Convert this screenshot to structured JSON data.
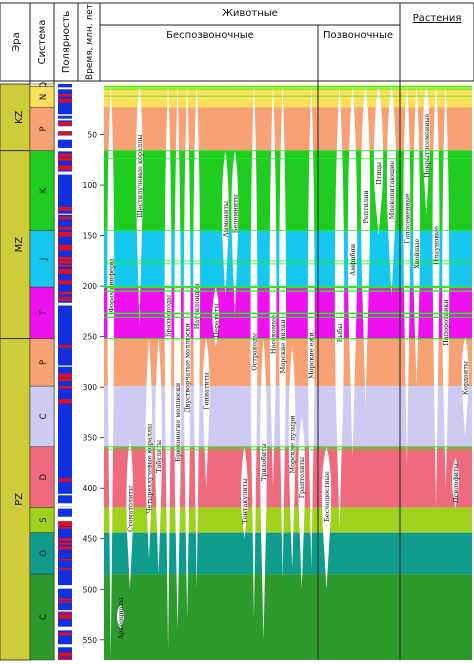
{
  "header": {
    "era": "Эра",
    "system": "Система",
    "polarity": "Полярность",
    "time": "Время, млн. лет",
    "animals": "Животные",
    "invertebrates": "Беспозвоночные",
    "vertebrates": "Позвоночные",
    "plants": "Растения"
  },
  "eras": [
    {
      "code": "KZ",
      "from": 0,
      "to": 66
    },
    {
      "code": "MZ",
      "from": 66,
      "to": 252
    },
    {
      "code": "PZ",
      "from": 252,
      "to": 570
    }
  ],
  "systems": [
    {
      "code": "Q",
      "from": 0,
      "to": 2.6,
      "color": "#f9f5a8"
    },
    {
      "code": "N",
      "from": 2.6,
      "to": 23,
      "color": "#fbe05a"
    },
    {
      "code": "P",
      "from": 23,
      "to": 66,
      "color": "#f7a174"
    },
    {
      "code": "K",
      "from": 66,
      "to": 145,
      "color": "#1fcc1f"
    },
    {
      "code": "J",
      "from": 145,
      "to": 201,
      "color": "#16c8f0"
    },
    {
      "code": "T",
      "from": 201,
      "to": 252,
      "color": "#ee10ee"
    },
    {
      "code": "P",
      "from": 252,
      "to": 299,
      "color": "#f7a174"
    },
    {
      "code": "C",
      "from": 299,
      "to": 359,
      "color": "#cfcaf2"
    },
    {
      "code": "D",
      "from": 359,
      "to": 419,
      "color": "#f06a7e"
    },
    {
      "code": "S",
      "from": 419,
      "to": 444,
      "color": "#9ed21c"
    },
    {
      "code": "O",
      "from": 444,
      "to": 485,
      "color": "#0f9c8c"
    },
    {
      "code": "C",
      "from": 485,
      "to": 570,
      "color": "#2c9a2c"
    }
  ],
  "time_ticks": [
    50,
    100,
    150,
    200,
    250,
    300,
    350,
    400,
    450,
    500,
    550
  ],
  "taxa": [
    {
      "label": "Фораминиферы",
      "group": "invertebrates",
      "from": 570,
      "to": 0
    },
    {
      "label": "Археоциаты",
      "group": "invertebrates",
      "from": 540,
      "to": 515
    },
    {
      "label": "Стоматолиты",
      "group": "invertebrates",
      "from": 500,
      "to": 350
    },
    {
      "label": "Шестилучевые кораллы",
      "group": "invertebrates",
      "from": 240,
      "to": 0
    },
    {
      "label": "Четырехлучевые кораллы",
      "group": "invertebrates",
      "from": 470,
      "to": 252
    },
    {
      "label": "Табуляты",
      "group": "invertebrates",
      "from": 485,
      "to": 252
    },
    {
      "label": "Брахиоподы",
      "group": "invertebrates",
      "from": 560,
      "to": 0
    },
    {
      "label": "Брюхоногие моллюски",
      "group": "invertebrates",
      "from": 540,
      "to": 0
    },
    {
      "label": "Двустворчатые моллюски",
      "group": "invertebrates",
      "from": 530,
      "to": 0
    },
    {
      "label": "Наутилоидеи",
      "group": "invertebrates",
      "from": 500,
      "to": 0
    },
    {
      "label": "Гониатиты",
      "group": "invertebrates",
      "from": 400,
      "to": 252
    },
    {
      "label": "Цератиты",
      "group": "invertebrates",
      "from": 260,
      "to": 201
    },
    {
      "label": "Аммониты",
      "group": "invertebrates",
      "from": 210,
      "to": 66
    },
    {
      "label": "Белемниты",
      "group": "invertebrates",
      "from": 230,
      "to": 66
    },
    {
      "label": "Тентакулиты",
      "group": "invertebrates",
      "from": 450,
      "to": 359
    },
    {
      "label": "Остракоды",
      "group": "invertebrates",
      "from": 530,
      "to": 0
    },
    {
      "label": "Трилобиты",
      "group": "invertebrates",
      "from": 550,
      "to": 252
    },
    {
      "label": "Насекомые",
      "group": "invertebrates",
      "from": 400,
      "to": 0
    },
    {
      "label": "Морские лилии",
      "group": "invertebrates",
      "from": 490,
      "to": 0
    },
    {
      "label": "Морские пузыри",
      "group": "invertebrates",
      "from": 480,
      "to": 260
    },
    {
      "label": "Граптолиты",
      "group": "invertebrates",
      "from": 500,
      "to": 330
    },
    {
      "label": "Морские ежи",
      "group": "invertebrates",
      "from": 480,
      "to": 0
    },
    {
      "label": "Бесчелюстные",
      "group": "vertebrates",
      "from": 500,
      "to": 359
    },
    {
      "label": "Рыбы",
      "group": "vertebrates",
      "from": 440,
      "to": 0
    },
    {
      "label": "Амфибии",
      "group": "vertebrates",
      "from": 370,
      "to": 0
    },
    {
      "label": "Рептилии",
      "group": "vertebrates",
      "from": 320,
      "to": 0
    },
    {
      "label": "Птицы",
      "group": "vertebrates",
      "from": 150,
      "to": 0
    },
    {
      "label": "Млекопитающие",
      "group": "vertebrates",
      "from": 210,
      "to": 0
    },
    {
      "label": "Голосеменные",
      "group": "plants",
      "from": 380,
      "to": 0
    },
    {
      "label": "Хвойные",
      "group": "plants",
      "from": 300,
      "to": 0
    },
    {
      "label": "Покрытосеменные",
      "group": "plants",
      "from": 130,
      "to": 0
    },
    {
      "label": "Плауновые",
      "group": "plants",
      "from": 420,
      "to": 0
    },
    {
      "label": "Папоротники",
      "group": "plants",
      "from": 400,
      "to": 0
    },
    {
      "label": "Псилофиты",
      "group": "plants",
      "from": 420,
      "to": 370
    },
    {
      "label": "Кордаиты",
      "group": "plants",
      "from": 350,
      "to": 250
    }
  ]
}
